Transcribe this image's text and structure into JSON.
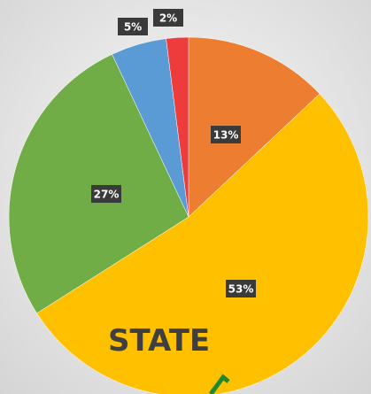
{
  "chart_data": {
    "type": "pie",
    "values": [
      13,
      53,
      27,
      5,
      2
    ],
    "value_labels": [
      "13%",
      "53%",
      "27%",
      "5%",
      "2%"
    ],
    "colors": [
      "#ed7d31",
      "#ffc000",
      "#70ad47",
      "#5b9bd5",
      "#ee3b3b"
    ],
    "annotation": "STATE"
  }
}
